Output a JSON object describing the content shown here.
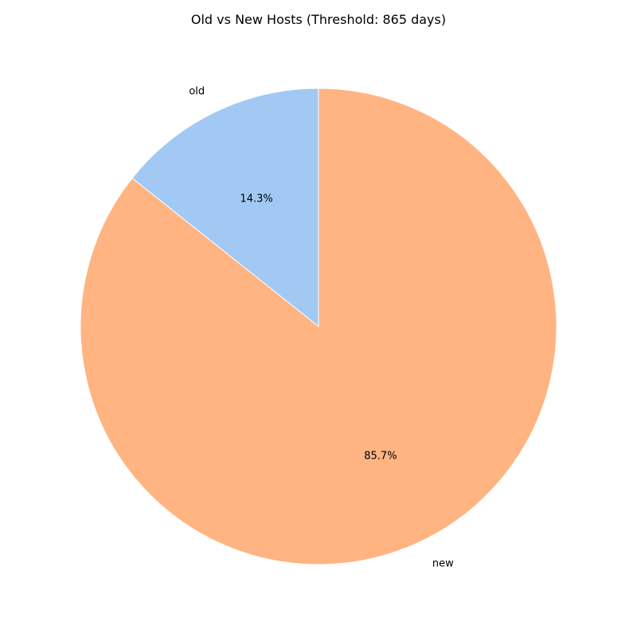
{
  "chart_data": {
    "type": "pie",
    "title": "Old vs New Hosts (Threshold: 865 days)",
    "categories": [
      "old",
      "new"
    ],
    "values": [
      14.3,
      85.7
    ],
    "value_labels": [
      "14.3%",
      "85.7%"
    ],
    "colors": [
      "#a1c9f4",
      "#ffb482"
    ],
    "start_angle_deg": 90,
    "direction": "counterclockwise"
  }
}
